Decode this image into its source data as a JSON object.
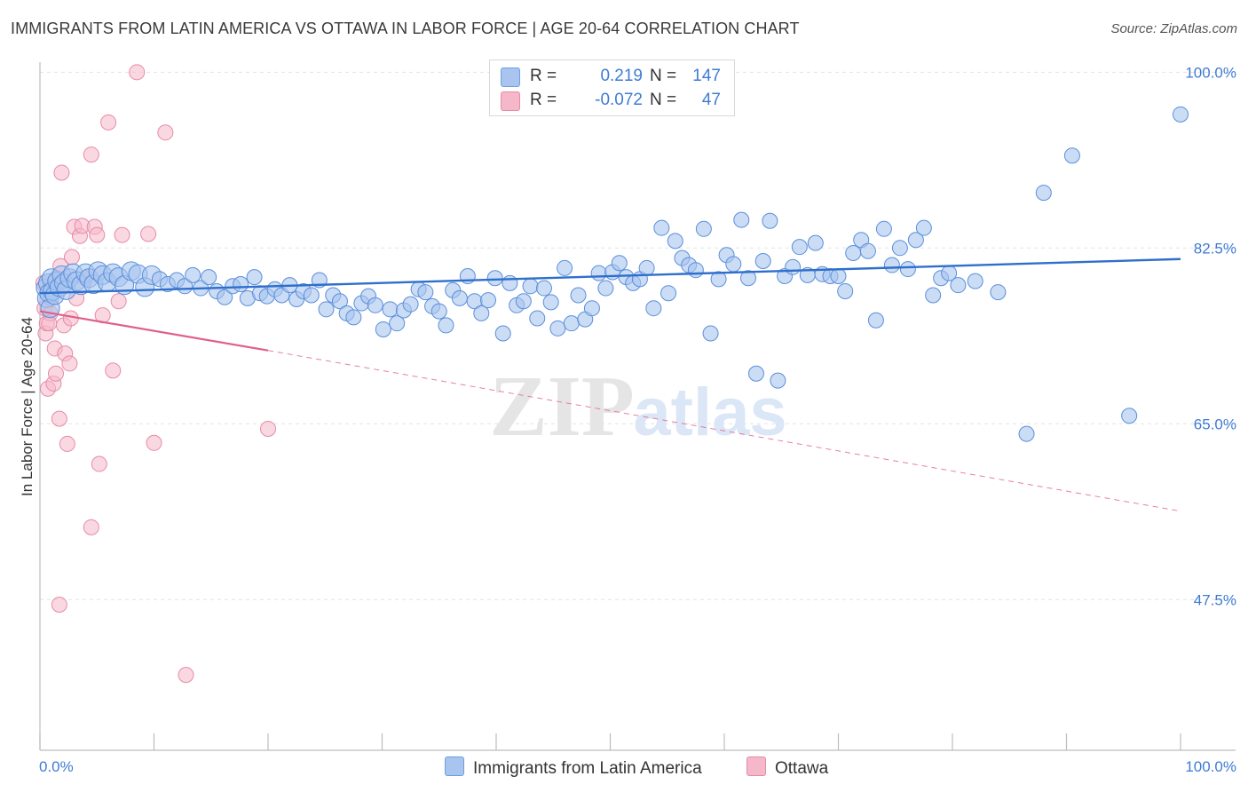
{
  "header": {
    "title": "IMMIGRANTS FROM LATIN AMERICA VS OTTAWA IN LABOR FORCE | AGE 20-64 CORRELATION CHART",
    "source": "Source: ZipAtlas.com"
  },
  "watermark": {
    "zip": "ZIP",
    "atlas": "atlas"
  },
  "legend": {
    "rows": [
      {
        "r_label": "R =",
        "r_value": "0.219",
        "n_label": "N =",
        "n_value": "147",
        "color": "#a9c5ef"
      },
      {
        "r_label": "R =",
        "r_value": "-0.072",
        "n_label": "N =",
        "n_value": "47",
        "color": "#f5b8cb"
      }
    ]
  },
  "bottom_legend": {
    "items": [
      {
        "label": "Immigrants from Latin America",
        "color": "#a9c5ef"
      },
      {
        "label": "Ottawa",
        "color": "#f5b8cb"
      }
    ]
  },
  "colors": {
    "blue_fill": "#a9c5ef",
    "blue_stroke": "#5b8fdb",
    "blue_line": "#2f6fcc",
    "pink_fill": "#f5b8cb",
    "pink_stroke": "#e78aa8",
    "pink_line": "#e0608a",
    "tick_label": "#3f7bd4",
    "grid": "#e3e3e3"
  },
  "chart_data": {
    "type": "scatter",
    "title": "IMMIGRANTS FROM LATIN AMERICA VS OTTAWA IN LABOR FORCE | AGE 20-64 CORRELATION CHART",
    "xlabel": "",
    "ylabel": "In Labor Force | Age 20-64",
    "xlim": [
      0,
      100
    ],
    "ylim": [
      32.5,
      101
    ],
    "x_tick_labels": [
      "0.0%",
      "100.0%"
    ],
    "y_ticks": [
      47.5,
      65.0,
      82.5,
      100.0
    ],
    "y_tick_labels": [
      "47.5%",
      "65.0%",
      "82.5%",
      "100.0%"
    ],
    "grid": true,
    "legend_position": "top-center",
    "series": [
      {
        "name": "Immigrants from Latin America",
        "color": "#a9c5ef",
        "trend": {
          "x": [
            0,
            100
          ],
          "y": [
            78.0,
            81.4
          ],
          "style": "solid"
        },
        "points": [
          [
            0.5,
            78.5
          ],
          [
            0.6,
            77.5
          ],
          [
            0.7,
            79.0
          ],
          [
            0.8,
            78.0
          ],
          [
            0.9,
            76.5
          ],
          [
            1.0,
            79.5
          ],
          [
            1.1,
            78.2
          ],
          [
            1.3,
            77.8
          ],
          [
            1.5,
            79.2
          ],
          [
            1.7,
            78.6
          ],
          [
            1.9,
            79.8
          ],
          [
            2.1,
            79.0
          ],
          [
            2.3,
            78.3
          ],
          [
            2.6,
            79.5
          ],
          [
            2.9,
            80.0
          ],
          [
            3.2,
            79.2
          ],
          [
            3.6,
            78.8
          ],
          [
            4.0,
            80.0
          ],
          [
            4.3,
            79.5
          ],
          [
            4.7,
            78.9
          ],
          [
            5.1,
            80.2
          ],
          [
            5.5,
            79.8
          ],
          [
            5.9,
            79.1
          ],
          [
            6.4,
            80.0
          ],
          [
            6.9,
            79.6
          ],
          [
            7.4,
            78.8
          ],
          [
            8.0,
            80.2
          ],
          [
            8.6,
            79.9
          ],
          [
            9.2,
            78.6
          ],
          [
            9.8,
            79.8
          ],
          [
            10.5,
            79.4
          ],
          [
            11.2,
            78.9
          ],
          [
            12.0,
            79.3
          ],
          [
            12.7,
            78.7
          ],
          [
            13.4,
            79.8
          ],
          [
            14.1,
            78.5
          ],
          [
            14.8,
            79.6
          ],
          [
            15.5,
            78.2
          ],
          [
            16.2,
            77.6
          ],
          [
            16.9,
            78.7
          ],
          [
            17.6,
            78.9
          ],
          [
            18.2,
            77.5
          ],
          [
            18.8,
            79.6
          ],
          [
            19.3,
            78.0
          ],
          [
            19.9,
            77.7
          ],
          [
            20.6,
            78.4
          ],
          [
            21.2,
            77.8
          ],
          [
            21.9,
            78.8
          ],
          [
            22.5,
            77.4
          ],
          [
            23.1,
            78.2
          ],
          [
            23.8,
            77.8
          ],
          [
            24.5,
            79.3
          ],
          [
            25.1,
            76.4
          ],
          [
            25.7,
            77.8
          ],
          [
            26.3,
            77.2
          ],
          [
            26.9,
            76.0
          ],
          [
            27.5,
            75.6
          ],
          [
            28.2,
            77.0
          ],
          [
            28.8,
            77.7
          ],
          [
            29.4,
            76.8
          ],
          [
            30.1,
            74.4
          ],
          [
            30.7,
            76.4
          ],
          [
            31.3,
            75.0
          ],
          [
            31.9,
            76.3
          ],
          [
            32.5,
            76.9
          ],
          [
            33.2,
            78.4
          ],
          [
            33.8,
            78.1
          ],
          [
            34.4,
            76.7
          ],
          [
            35.0,
            76.2
          ],
          [
            35.6,
            74.8
          ],
          [
            36.2,
            78.3
          ],
          [
            36.8,
            77.5
          ],
          [
            37.5,
            79.7
          ],
          [
            38.1,
            77.2
          ],
          [
            38.7,
            76.0
          ],
          [
            39.3,
            77.3
          ],
          [
            39.9,
            79.5
          ],
          [
            40.6,
            74.0
          ],
          [
            41.2,
            79.0
          ],
          [
            41.8,
            76.8
          ],
          [
            42.4,
            77.2
          ],
          [
            43.0,
            78.7
          ],
          [
            43.6,
            75.5
          ],
          [
            44.2,
            78.5
          ],
          [
            44.8,
            77.1
          ],
          [
            45.4,
            74.5
          ],
          [
            46.0,
            80.5
          ],
          [
            46.6,
            75.0
          ],
          [
            47.2,
            77.8
          ],
          [
            47.8,
            75.4
          ],
          [
            48.4,
            76.5
          ],
          [
            49.0,
            80.0
          ],
          [
            49.6,
            78.5
          ],
          [
            50.2,
            80.1
          ],
          [
            50.8,
            81.0
          ],
          [
            51.4,
            79.6
          ],
          [
            52.0,
            79.0
          ],
          [
            52.6,
            79.4
          ],
          [
            53.2,
            80.5
          ],
          [
            53.8,
            76.5
          ],
          [
            54.5,
            84.5
          ],
          [
            55.1,
            78.0
          ],
          [
            55.7,
            83.2
          ],
          [
            56.3,
            81.5
          ],
          [
            56.9,
            80.8
          ],
          [
            57.5,
            80.3
          ],
          [
            58.2,
            84.4
          ],
          [
            58.8,
            74.0
          ],
          [
            59.5,
            79.4
          ],
          [
            60.2,
            81.8
          ],
          [
            60.8,
            80.9
          ],
          [
            61.5,
            85.3
          ],
          [
            62.1,
            79.5
          ],
          [
            62.8,
            70.0
          ],
          [
            63.4,
            81.2
          ],
          [
            64.0,
            85.2
          ],
          [
            64.7,
            69.3
          ],
          [
            65.3,
            79.7
          ],
          [
            66.0,
            80.6
          ],
          [
            66.6,
            82.6
          ],
          [
            67.3,
            79.8
          ],
          [
            68.0,
            83.0
          ],
          [
            68.6,
            79.9
          ],
          [
            69.3,
            79.7
          ],
          [
            70.0,
            79.7
          ],
          [
            70.6,
            78.2
          ],
          [
            71.3,
            82.0
          ],
          [
            72.0,
            83.3
          ],
          [
            72.6,
            82.2
          ],
          [
            73.3,
            75.3
          ],
          [
            74.0,
            84.4
          ],
          [
            74.7,
            80.8
          ],
          [
            75.4,
            82.5
          ],
          [
            76.1,
            80.4
          ],
          [
            76.8,
            83.3
          ],
          [
            77.5,
            84.5
          ],
          [
            78.3,
            77.8
          ],
          [
            79.0,
            79.5
          ],
          [
            79.7,
            80.0
          ],
          [
            80.5,
            78.8
          ],
          [
            82.0,
            79.2
          ],
          [
            84.0,
            78.1
          ],
          [
            86.5,
            64.0
          ],
          [
            88.0,
            88.0
          ],
          [
            90.5,
            91.7
          ],
          [
            95.5,
            65.8
          ],
          [
            100.0,
            95.8
          ]
        ]
      },
      {
        "name": "Ottawa",
        "color": "#f5b8cb",
        "trend": {
          "x": [
            0,
            20
          ],
          "y": [
            76.2,
            72.3
          ],
          "style": "solid"
        },
        "trend_extended": {
          "x": [
            20,
            100
          ],
          "y": [
            72.3,
            56.3
          ],
          "style": "dashed"
        },
        "points": [
          [
            0.3,
            79.0
          ],
          [
            0.4,
            76.5
          ],
          [
            0.5,
            74.0
          ],
          [
            0.6,
            75.0
          ],
          [
            0.7,
            68.5
          ],
          [
            0.8,
            78.5
          ],
          [
            0.9,
            76.0
          ],
          [
            1.0,
            77.5
          ],
          [
            1.1,
            78.0
          ],
          [
            1.2,
            69.0
          ],
          [
            1.3,
            72.5
          ],
          [
            1.4,
            70.0
          ],
          [
            1.5,
            79.5
          ],
          [
            1.6,
            78.8
          ],
          [
            1.7,
            65.5
          ],
          [
            1.8,
            80.7
          ],
          [
            1.9,
            90.0
          ],
          [
            2.0,
            79.2
          ],
          [
            2.1,
            74.8
          ],
          [
            2.2,
            72.0
          ],
          [
            2.4,
            63.0
          ],
          [
            2.6,
            71.0
          ],
          [
            2.8,
            81.6
          ],
          [
            3.0,
            84.6
          ],
          [
            3.2,
            77.5
          ],
          [
            3.5,
            83.7
          ],
          [
            3.7,
            84.7
          ],
          [
            4.0,
            79.5
          ],
          [
            4.5,
            91.8
          ],
          [
            4.8,
            84.6
          ],
          [
            5.0,
            83.8
          ],
          [
            5.2,
            61.0
          ],
          [
            5.5,
            75.8
          ],
          [
            6.0,
            95.0
          ],
          [
            6.4,
            70.3
          ],
          [
            6.9,
            77.2
          ],
          [
            7.2,
            83.8
          ],
          [
            8.5,
            100.0
          ],
          [
            9.5,
            83.9
          ],
          [
            10.0,
            63.1
          ],
          [
            11.0,
            94.0
          ],
          [
            12.8,
            40.0
          ],
          [
            20.0,
            64.5
          ],
          [
            1.7,
            47.0
          ],
          [
            4.5,
            54.7
          ],
          [
            2.7,
            75.5
          ],
          [
            0.8,
            75.0
          ]
        ]
      }
    ]
  }
}
